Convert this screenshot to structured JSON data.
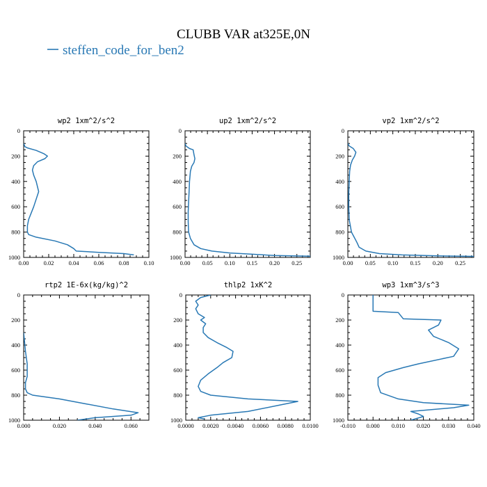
{
  "figure_title": "CLUBB VAR at325E,0N",
  "legend": {
    "label": "steffen_code_for_ben2",
    "color": "#2878b4"
  },
  "line_color": "#2878b4",
  "chart_data": [
    {
      "type": "line",
      "title": "wp2  1xm^2/s^2",
      "xlim": [
        0,
        0.1
      ],
      "ylim": [
        1000,
        0
      ],
      "xticks": [
        0.0,
        0.02,
        0.04,
        0.06,
        0.08,
        0.1
      ],
      "xtick_labels": [
        "0.00",
        "0.02",
        "0.04",
        "0.06",
        "0.08",
        "0.10"
      ],
      "yticks": [
        0,
        200,
        400,
        600,
        800,
        1000
      ],
      "ytick_labels": [
        "0",
        "200",
        "400",
        "600",
        "800",
        "1000"
      ],
      "series": [
        {
          "x": [
            0.0,
            0.001,
            0.003,
            0.01,
            0.016,
            0.019,
            0.017,
            0.011,
            0.008,
            0.007,
            0.008,
            0.01,
            0.012,
            0.01,
            0.008,
            0.006,
            0.004,
            0.003,
            0.003,
            0.004,
            0.01,
            0.025,
            0.035,
            0.04,
            0.042,
            0.06,
            0.08,
            0.088
          ],
          "y": [
            100,
            125,
            135,
            155,
            180,
            200,
            220,
            245,
            275,
            310,
            350,
            400,
            480,
            540,
            600,
            650,
            700,
            750,
            800,
            820,
            840,
            870,
            900,
            930,
            950,
            960,
            970,
            980
          ]
        }
      ]
    },
    {
      "type": "line",
      "title": "up2  1xm^2/s^2",
      "xlim": [
        0,
        0.28
      ],
      "ylim": [
        1000,
        0
      ],
      "xticks": [
        0.0,
        0.05,
        0.1,
        0.15,
        0.2,
        0.25
      ],
      "xtick_labels": [
        "0.00",
        "0.05",
        "0.10",
        "0.15",
        "0.20",
        "0.25"
      ],
      "yticks": [
        0,
        200,
        400,
        600,
        800,
        1000
      ],
      "ytick_labels": [
        "0",
        "200",
        "400",
        "600",
        "800",
        "1000"
      ],
      "series": [
        {
          "x": [
            0.0,
            0.002,
            0.01,
            0.018,
            0.02,
            0.022,
            0.02,
            0.015,
            0.012,
            0.01,
            0.009,
            0.008,
            0.007,
            0.007,
            0.008,
            0.012,
            0.02,
            0.035,
            0.06,
            0.1,
            0.15,
            0.2,
            0.28
          ],
          "y": [
            100,
            120,
            140,
            150,
            190,
            220,
            250,
            280,
            320,
            400,
            480,
            560,
            640,
            720,
            800,
            850,
            900,
            930,
            950,
            965,
            975,
            985,
            990
          ]
        }
      ]
    },
    {
      "type": "line",
      "title": "vp2  1xm^2/s^2",
      "xlim": [
        0,
        0.28
      ],
      "ylim": [
        1000,
        0
      ],
      "xticks": [
        0.0,
        0.05,
        0.1,
        0.15,
        0.2,
        0.25
      ],
      "xtick_labels": [
        "0.00",
        "0.05",
        "0.10",
        "0.15",
        "0.20",
        "0.25"
      ],
      "yticks": [
        0,
        200,
        400,
        600,
        800,
        1000
      ],
      "ytick_labels": [
        "0",
        "200",
        "400",
        "600",
        "800",
        "1000"
      ],
      "series": [
        {
          "x": [
            0.0,
            0.003,
            0.012,
            0.018,
            0.015,
            0.01,
            0.006,
            0.004,
            0.003,
            0.002,
            0.002,
            0.003,
            0.008,
            0.02,
            0.025,
            0.04,
            0.07,
            0.12,
            0.2,
            0.28
          ],
          "y": [
            100,
            120,
            140,
            170,
            200,
            230,
            270,
            320,
            400,
            500,
            600,
            700,
            800,
            880,
            920,
            950,
            970,
            980,
            988,
            992
          ]
        }
      ]
    },
    {
      "type": "line",
      "title": "rtp2  1E-6x(kg/kg)^2",
      "xlim": [
        0,
        0.07
      ],
      "ylim": [
        1000,
        0
      ],
      "xticks": [
        0.0,
        0.02,
        0.04,
        0.06
      ],
      "xtick_labels": [
        "0.000",
        "0.020",
        "0.040",
        "0.060"
      ],
      "yticks": [
        0,
        200,
        400,
        600,
        800,
        1000
      ],
      "ytick_labels": [
        "0",
        "200",
        "400",
        "600",
        "800",
        "1000"
      ],
      "series": [
        {
          "x": [
            0.0,
            0.001,
            0.002,
            0.002,
            0.001,
            0.001,
            0.002,
            0.005,
            0.02,
            0.035,
            0.05,
            0.064,
            0.06,
            0.04,
            0.03
          ],
          "y": [
            300,
            450,
            550,
            650,
            700,
            750,
            780,
            800,
            830,
            870,
            910,
            940,
            960,
            980,
            1000
          ]
        }
      ]
    },
    {
      "type": "line",
      "title": "thlp2  1xK^2",
      "xlim": [
        0,
        0.01
      ],
      "ylim": [
        1000,
        0
      ],
      "xticks": [
        0.0,
        0.002,
        0.004,
        0.006,
        0.008,
        0.01
      ],
      "xtick_labels": [
        "0.0000",
        "0.0020",
        "0.0040",
        "0.0060",
        "0.0080",
        "0.0100"
      ],
      "yticks": [
        0,
        200,
        400,
        600,
        800,
        1000
      ],
      "ytick_labels": [
        "0",
        "200",
        "400",
        "600",
        "800",
        "1000"
      ],
      "series": [
        {
          "x": [
            0.002,
            0.0012,
            0.0008,
            0.001,
            0.0008,
            0.001,
            0.0015,
            0.0012,
            0.0016,
            0.0014,
            0.0014,
            0.0018,
            0.0025,
            0.0033,
            0.0038,
            0.0037,
            0.003,
            0.0025,
            0.0018,
            0.0012,
            0.001,
            0.0012,
            0.002,
            0.005,
            0.009,
            0.0075,
            0.005,
            0.002,
            0.001,
            0.0015
          ],
          "y": [
            0,
            20,
            50,
            80,
            110,
            150,
            180,
            200,
            230,
            260,
            300,
            340,
            380,
            420,
            450,
            500,
            540,
            580,
            630,
            680,
            730,
            770,
            800,
            830,
            850,
            880,
            930,
            960,
            980,
            990
          ]
        }
      ]
    },
    {
      "type": "line",
      "title": "wp3  1xm^3/s^3",
      "xlim": [
        -0.01,
        0.04
      ],
      "ylim": [
        1000,
        0
      ],
      "xticks": [
        -0.01,
        0.0,
        0.01,
        0.02,
        0.03,
        0.04
      ],
      "xtick_labels": [
        "-0.010",
        "0.000",
        "0.010",
        "0.020",
        "0.030",
        "0.040"
      ],
      "yticks": [
        0,
        200,
        400,
        600,
        800,
        1000
      ],
      "ytick_labels": [
        "0",
        "200",
        "400",
        "600",
        "800",
        "1000"
      ],
      "series": [
        {
          "x": [
            0.0,
            0.0,
            0.01,
            0.012,
            0.027,
            0.026,
            0.022,
            0.024,
            0.03,
            0.034,
            0.032,
            0.018,
            0.012,
            0.005,
            0.002,
            0.002,
            0.003,
            0.01,
            0.02,
            0.038,
            0.032,
            0.015,
            0.018,
            0.02,
            0.015
          ],
          "y": [
            0,
            130,
            140,
            190,
            200,
            240,
            280,
            330,
            380,
            430,
            490,
            550,
            580,
            620,
            660,
            720,
            780,
            830,
            860,
            880,
            900,
            930,
            950,
            970,
            1000
          ]
        }
      ]
    }
  ]
}
